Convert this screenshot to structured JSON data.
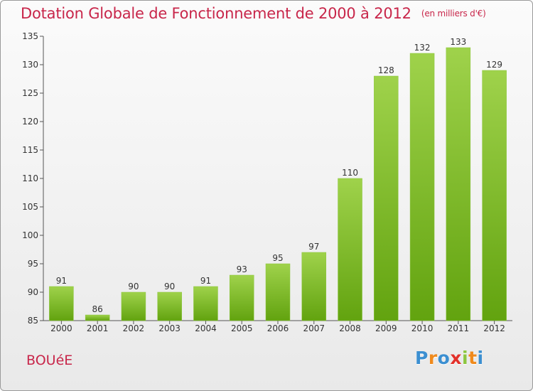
{
  "header": {
    "title": "Dotation Globale de Fonctionnement de 2000 à 2012",
    "unit": "(en milliers d'€)"
  },
  "footer": {
    "commune": "BOUéE",
    "logo_letters": [
      "P",
      "r",
      "o",
      "x",
      "i",
      "t",
      "i"
    ]
  },
  "colors": {
    "accent": "#c8264a",
    "bar_top": "#9fd24b",
    "bar_bottom": "#62a30f",
    "logo": [
      "#3b8fd1",
      "#f08a1c",
      "#3b8fd1",
      "#e2312b",
      "#8cc63f",
      "#f08a1c",
      "#3b8fd1"
    ]
  },
  "chart_data": {
    "type": "bar",
    "title": "Dotation Globale de Fonctionnement de 2000 à 2012",
    "subtitle": "(en milliers d'€)",
    "categories": [
      "2000",
      "2001",
      "2002",
      "2003",
      "2004",
      "2005",
      "2006",
      "2007",
      "2008",
      "2009",
      "2010",
      "2011",
      "2012"
    ],
    "values": [
      91,
      86,
      90,
      90,
      91,
      93,
      95,
      97,
      110,
      128,
      132,
      133,
      129
    ],
    "ylim": [
      85,
      135
    ],
    "yticks": [
      85,
      90,
      95,
      100,
      105,
      110,
      115,
      120,
      125,
      130,
      135
    ],
    "grid": false,
    "xlabel": "",
    "ylabel": ""
  }
}
